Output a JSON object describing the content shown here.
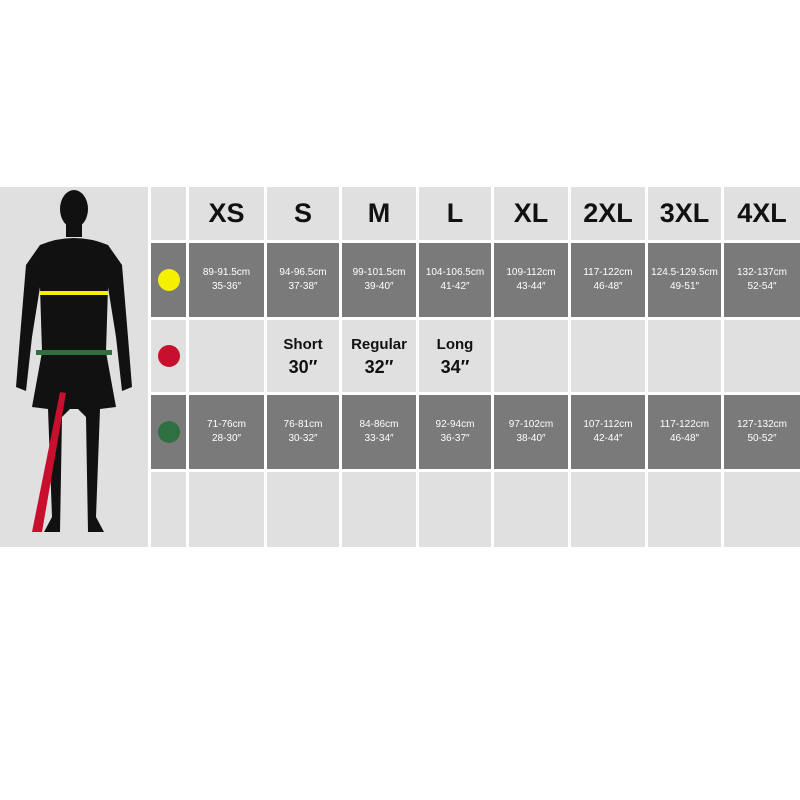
{
  "sizes": [
    "XS",
    "S",
    "M",
    "L",
    "XL",
    "2XL",
    "3XL",
    "4XL"
  ],
  "rows": [
    {
      "name": "chest",
      "color": "#f5f000",
      "values": [
        [
          "89-91.5cm",
          "35-36″"
        ],
        [
          "94-96.5cm",
          "37-38″"
        ],
        [
          "99-101.5cm",
          "39-40″"
        ],
        [
          "104-106.5cm",
          "41-42″"
        ],
        [
          "109-112cm",
          "43-44″"
        ],
        [
          "117-122cm",
          "46-48″"
        ],
        [
          "124.5-129.5cm",
          "49-51″"
        ],
        [
          "132-137cm",
          "52-54″"
        ]
      ]
    },
    {
      "name": "inseam",
      "color": "#c8102e",
      "values": [
        [
          "",
          ""
        ],
        [
          "Short",
          "30″"
        ],
        [
          "Regular",
          "32″"
        ],
        [
          "Long",
          "34″"
        ],
        [
          "",
          ""
        ],
        [
          "",
          ""
        ],
        [
          "",
          ""
        ],
        [
          "",
          ""
        ]
      ]
    },
    {
      "name": "waist",
      "color": "#2e7040",
      "values": [
        [
          "71-76cm",
          "28-30″"
        ],
        [
          "76-81cm",
          "30-32″"
        ],
        [
          "84-86cm",
          "33-34″"
        ],
        [
          "92-94cm",
          "36-37″"
        ],
        [
          "97-102cm",
          "38-40″"
        ],
        [
          "107-112cm",
          "42-44″"
        ],
        [
          "117-122cm",
          "46-48″"
        ],
        [
          "127-132cm",
          "50-52″"
        ]
      ]
    }
  ]
}
